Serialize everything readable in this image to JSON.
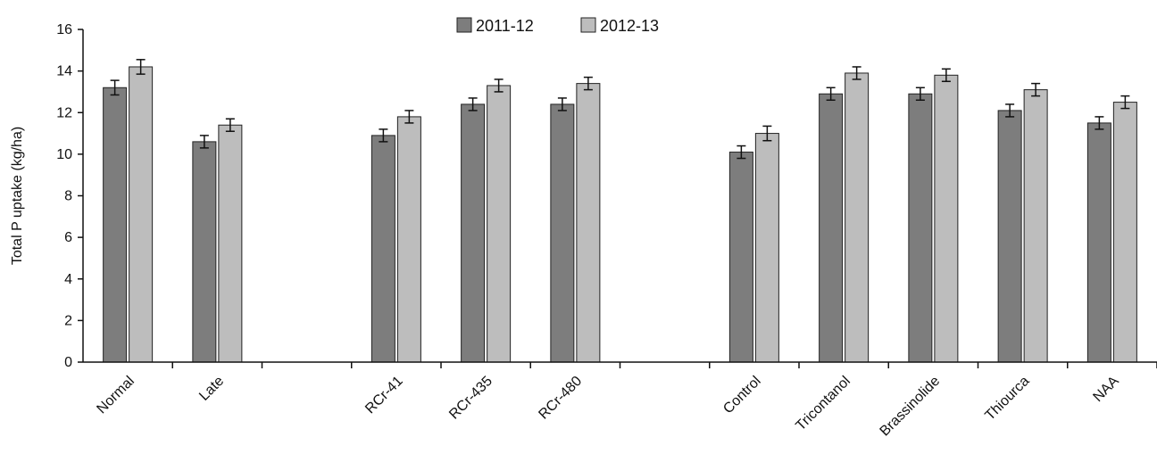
{
  "chart_data": {
    "type": "bar",
    "title": "",
    "xlabel": "",
    "ylabel": "Total P uptake (kg/ha)",
    "ylim": [
      0,
      16
    ],
    "yticks": [
      "0",
      "2",
      "4",
      "6",
      "8",
      "10",
      "12",
      "14",
      "16"
    ],
    "grid": false,
    "legend_position": "top-center",
    "error_bars": true,
    "categories": [
      "Normal",
      "Late",
      "",
      "RCr-41",
      "RCr-435",
      "RCr-480",
      "",
      "Control",
      "Tricontanol",
      "Brassinolide",
      "Thiourca",
      "NAA"
    ],
    "series": [
      {
        "name": "2011-12",
        "color": "#7d7d7d",
        "values": [
          13.2,
          10.6,
          null,
          10.9,
          12.4,
          12.4,
          null,
          10.1,
          12.9,
          12.9,
          12.1,
          11.5
        ],
        "errors": [
          0.35,
          0.3,
          null,
          0.3,
          0.3,
          0.3,
          null,
          0.3,
          0.3,
          0.3,
          0.3,
          0.3
        ]
      },
      {
        "name": "2012-13",
        "color": "#bdbdbd",
        "values": [
          14.2,
          11.4,
          null,
          11.8,
          13.3,
          13.4,
          null,
          11.0,
          13.9,
          13.8,
          13.1,
          12.5
        ],
        "errors": [
          0.35,
          0.3,
          null,
          0.3,
          0.3,
          0.3,
          null,
          0.35,
          0.3,
          0.3,
          0.3,
          0.3
        ]
      }
    ]
  }
}
